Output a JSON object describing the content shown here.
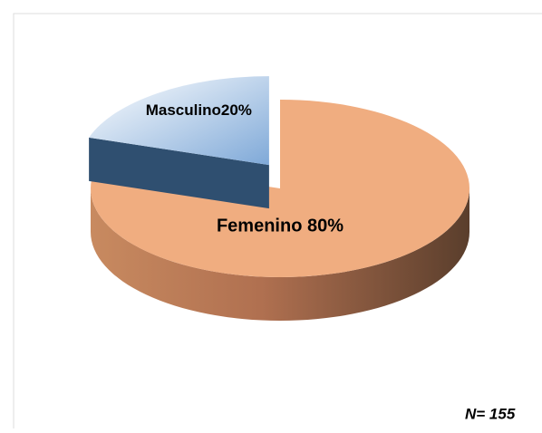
{
  "chart_data": {
    "type": "pie3d",
    "values": [
      80,
      20
    ],
    "value_labels": [
      "Femenino 80%",
      "Masculino20%"
    ],
    "colors": [
      "#f0ad80",
      "#a9c8ea"
    ],
    "annotation": "N= 155"
  }
}
